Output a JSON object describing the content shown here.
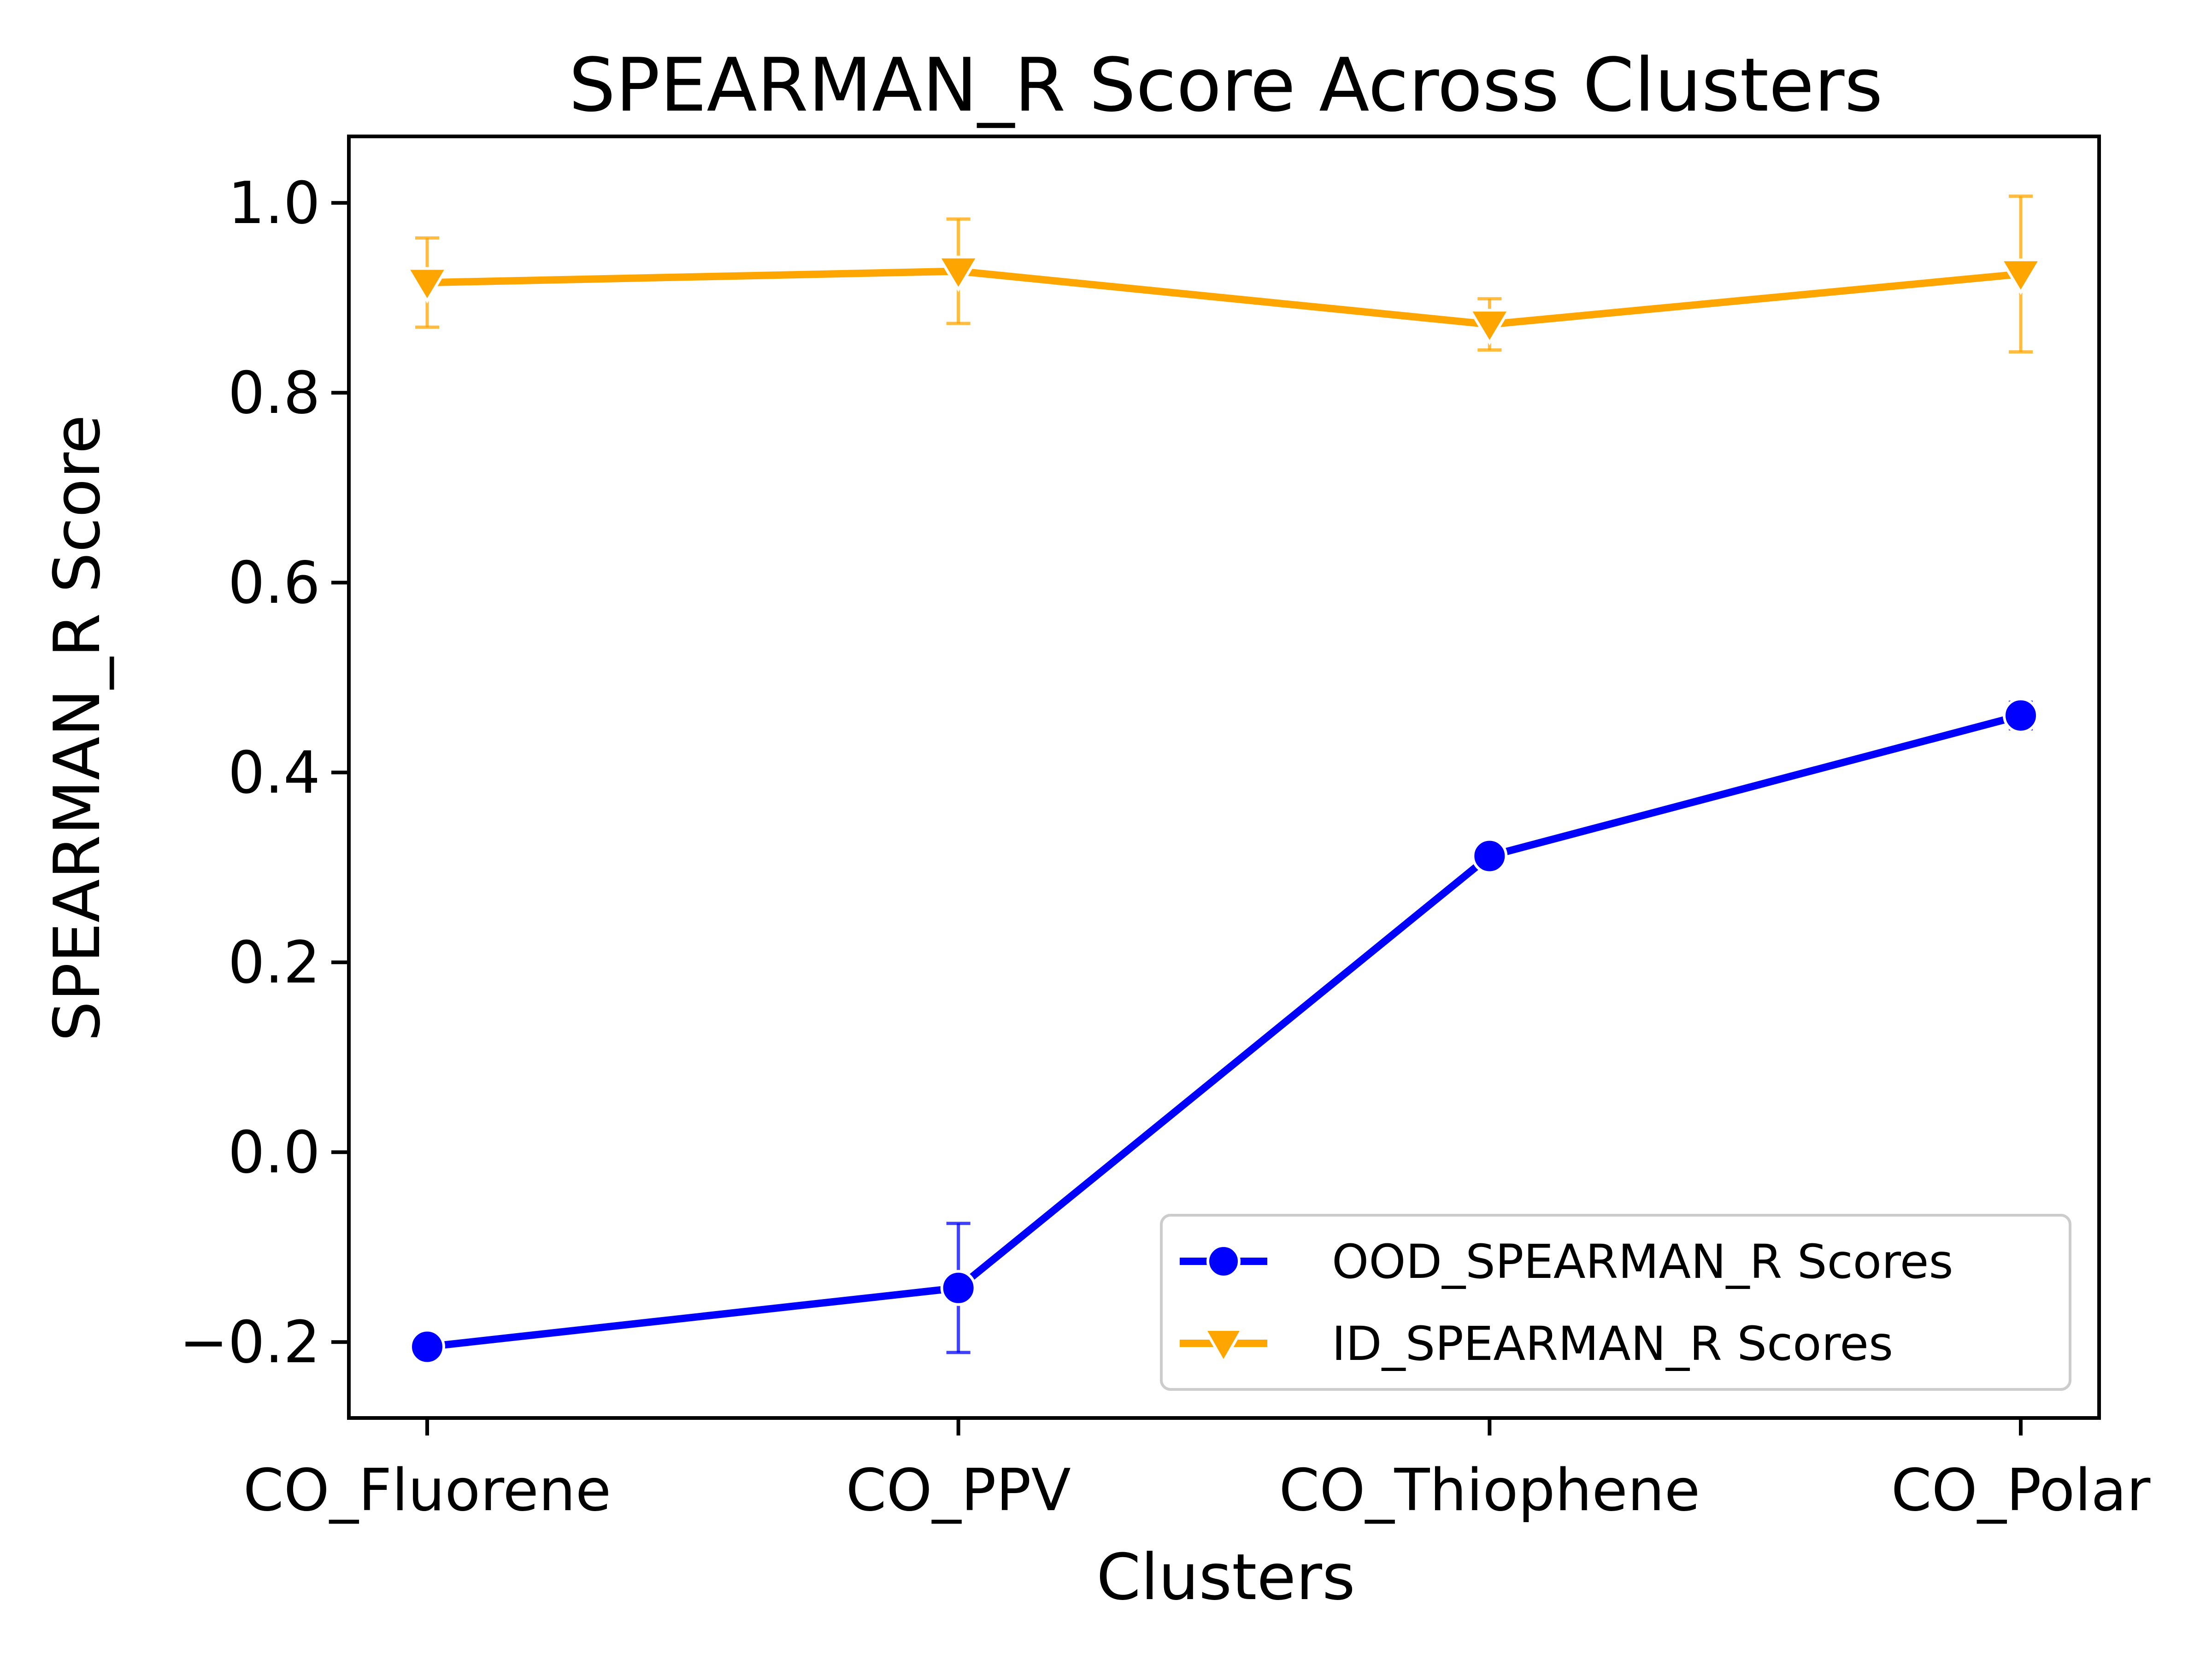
{
  "chart_data": {
    "type": "line",
    "title": "SPEARMAN_R Score Across Clusters",
    "xlabel": "Clusters",
    "ylabel": "SPEARMAN_R Score",
    "categories": [
      "CO_Fluorene",
      "CO_PPV",
      "CO_Thiophene",
      "CO_Polar"
    ],
    "ylim": [
      -0.28,
      1.07
    ],
    "yticks": [
      -0.2,
      0.0,
      0.2,
      0.4,
      0.6,
      0.8,
      1.0
    ],
    "ytick_labels": [
      "−0.2",
      "0.0",
      "0.2",
      "0.4",
      "0.6",
      "0.8",
      "1.0"
    ],
    "grid": false,
    "legend_position": "lower-right",
    "series": [
      {
        "name": "OOD_SPEARMAN_R Scores",
        "color": "#0000ff",
        "marker": "circle",
        "values": [
          -0.205,
          -0.143,
          0.312,
          0.46
        ],
        "error": [
          0.0,
          0.068,
          0.0,
          0.014
        ]
      },
      {
        "name": "ID_SPEARMAN_R Scores",
        "color": "#ffa500",
        "marker": "triangle-down",
        "values": [
          0.916,
          0.928,
          0.872,
          0.925
        ],
        "error": [
          0.047,
          0.055,
          0.027,
          0.082
        ]
      }
    ]
  }
}
